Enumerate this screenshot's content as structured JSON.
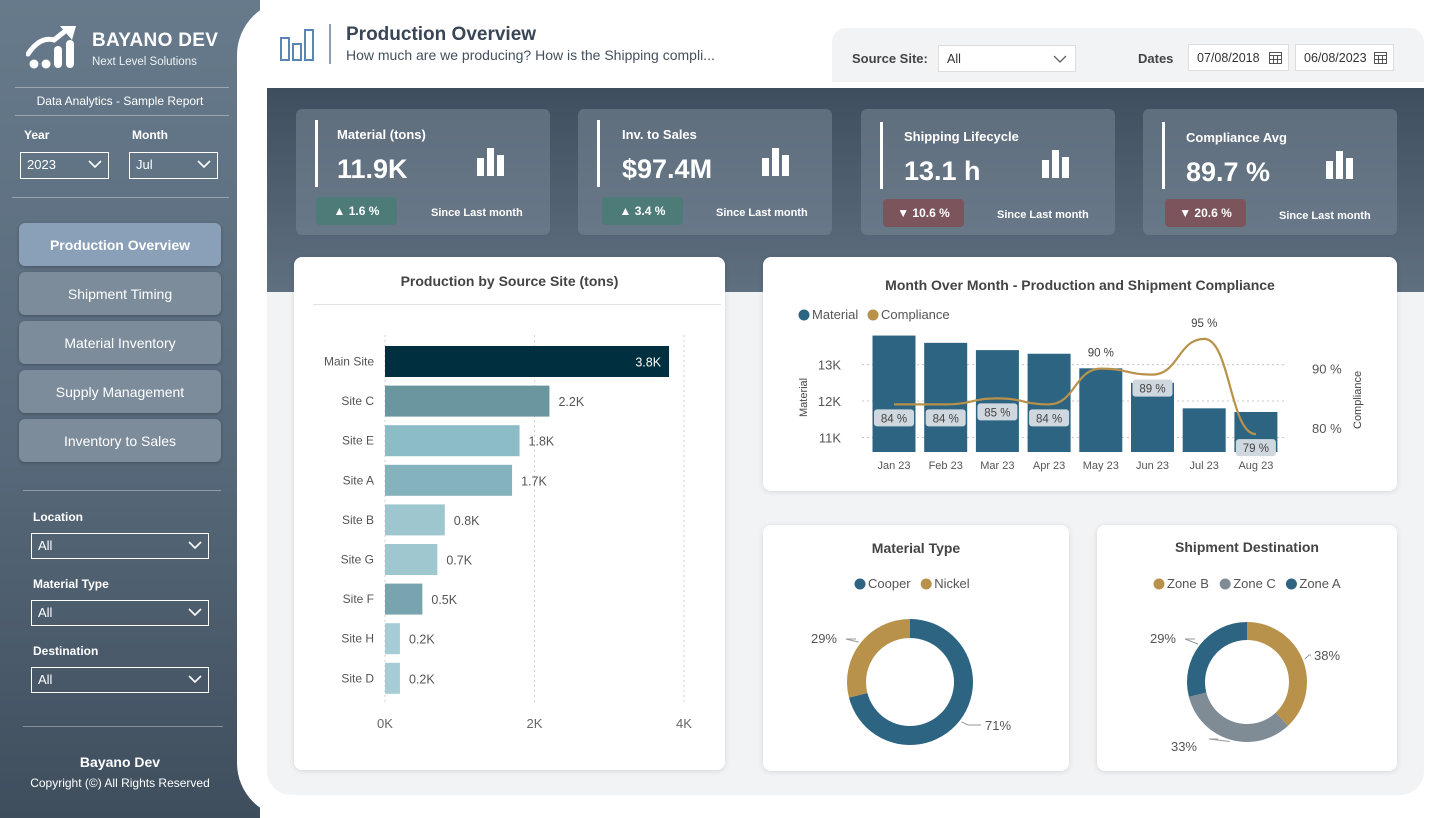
{
  "brand": {
    "name": "BAYANO DEV",
    "tagline": "Next Level Solutions",
    "subtitle": "Data Analytics - Sample Report"
  },
  "slicers": {
    "year_label": "Year",
    "year_value": "2023",
    "month_label": "Month",
    "month_value": "Jul",
    "location_label": "Location",
    "location_value": "All",
    "material_type_label": "Material Type",
    "material_type_value": "All",
    "destination_label": "Destination",
    "destination_value": "All"
  },
  "nav": [
    {
      "label": "Production Overview",
      "active": true
    },
    {
      "label": "Shipment Timing",
      "active": false
    },
    {
      "label": "Material Inventory",
      "active": false
    },
    {
      "label": "Supply Management",
      "active": false
    },
    {
      "label": "Inventory to Sales",
      "active": false
    }
  ],
  "footer": {
    "name": "Bayano Dev",
    "copyright": "Copyright (©) All Rights Reserved"
  },
  "header": {
    "title": "Production Overview",
    "subtitle": "How much are we producing? How is the Shipping compli...",
    "source_site_label": "Source Site:",
    "source_site_value": "All",
    "dates_label": "Dates",
    "date_start": "07/08/2018",
    "date_end": "06/08/2023"
  },
  "kpis": [
    {
      "label": "Material (tons)",
      "value": "11.9K",
      "change": "▲ 1.6 %",
      "direction": "up",
      "since": "Since Last month"
    },
    {
      "label": "Inv. to Sales",
      "value": "$97.4M",
      "change": "▲ 3.4 %",
      "direction": "up",
      "since": "Since Last month"
    },
    {
      "label": "Shipping Lifecycle",
      "value": "13.1 h",
      "change": "▼ 10.6 %",
      "direction": "down",
      "since": "Since Last month"
    },
    {
      "label": "Compliance Avg",
      "value": "89.7 %",
      "change": "▼ 20.6 %",
      "direction": "down",
      "since": "Since Last month"
    }
  ],
  "colors": {
    "dark_navy": "#00303f",
    "teal": "#2c6482",
    "gold": "#b8924a",
    "gray": "#7f8c96",
    "up_badge": "#4d7b78",
    "down_badge": "#7c545c"
  },
  "chart_data": [
    {
      "type": "bar",
      "orientation": "horizontal",
      "title": "Production by Source Site (tons)",
      "categories": [
        "Main Site",
        "Site C",
        "Site E",
        "Site A",
        "Site B",
        "Site G",
        "Site F",
        "Site H",
        "Site D"
      ],
      "values": [
        3800,
        2200,
        1800,
        1700,
        800,
        700,
        500,
        200,
        200
      ],
      "data_labels": [
        "3.8K",
        "2.2K",
        "1.8K",
        "1.7K",
        "0.8K",
        "0.7K",
        "0.5K",
        "0.2K",
        "0.2K"
      ],
      "colors": [
        "#00303f",
        "#6a979f",
        "#8cbcc6",
        "#84b3bd",
        "#9ec6cf",
        "#9fc7d0",
        "#77a4ae",
        "#a6cdd6",
        "#a6cdd6"
      ],
      "xlim": [
        0,
        4000
      ],
      "xticks": [
        "0K",
        "2K",
        "4K"
      ],
      "grid": true
    },
    {
      "type": "bar+line",
      "title": "Month Over Month - Production and Shipment Compliance",
      "legend": [
        "Material",
        "Compliance"
      ],
      "legend_position": "top-left",
      "categories": [
        "Jan 23",
        "Feb 23",
        "Mar 23",
        "Apr 23",
        "May 23",
        "Jun 23",
        "Jul 23",
        "Aug 23"
      ],
      "series": [
        {
          "name": "Material",
          "type": "bar",
          "axis": "left",
          "values": [
            13800,
            13600,
            13400,
            13300,
            12900,
            12500,
            11800,
            11700
          ]
        },
        {
          "name": "Compliance",
          "type": "line",
          "axis": "right",
          "values": [
            84,
            84,
            85,
            84,
            90,
            89,
            95,
            79
          ]
        }
      ],
      "compliance_labels": [
        "84 %",
        "84 %",
        "85 %",
        "84 %",
        "90 %",
        "89 %",
        "95 %",
        "79 %"
      ],
      "ylabel": "Material",
      "y2label": "Compliance",
      "yticks": [
        "11K",
        "12K",
        "13K"
      ],
      "ylim": [
        10600,
        14200
      ],
      "y2ticks": [
        "80 %",
        "90 %"
      ],
      "y2lim": [
        76,
        98
      ]
    },
    {
      "type": "pie",
      "donut": true,
      "title": "Material Type",
      "legend": [
        "Cooper",
        "Nickel"
      ],
      "values": [
        71,
        29
      ],
      "labels": [
        "71%",
        "29%"
      ],
      "colors": [
        "#2c6482",
        "#b8924a"
      ]
    },
    {
      "type": "pie",
      "donut": true,
      "title": "Shipment Destination",
      "legend": [
        "Zone B",
        "Zone C",
        "Zone A"
      ],
      "values": [
        38,
        33,
        29
      ],
      "labels": [
        "38%",
        "33%",
        "29%"
      ],
      "colors": [
        "#b8924a",
        "#7f8c96",
        "#2c6482"
      ]
    }
  ]
}
